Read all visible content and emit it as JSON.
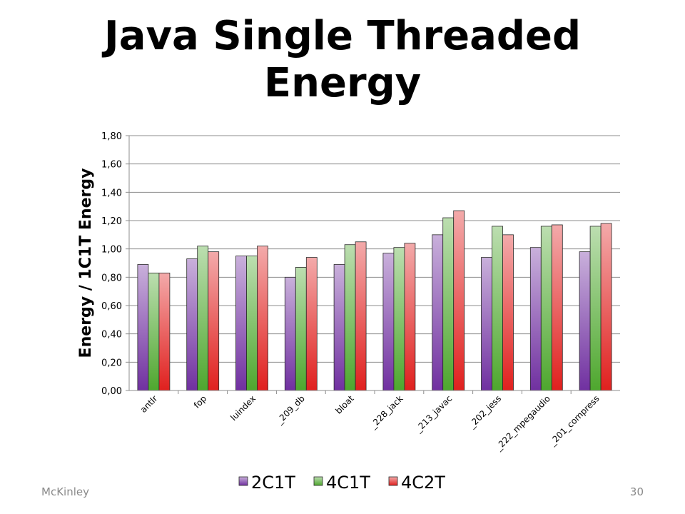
{
  "slide": {
    "title_line1": "Java Single Threaded",
    "title_line2": "Energy",
    "footer_author": "McKinley",
    "page_number": "30"
  },
  "chart_data": {
    "type": "bar",
    "title": "",
    "xlabel": "",
    "ylabel": "Energy / 1C1T Energy",
    "ylim": [
      0,
      1.8
    ],
    "yticks": [
      "0,00",
      "0,20",
      "0,40",
      "0,60",
      "0,80",
      "1,00",
      "1,20",
      "1,40",
      "1,60",
      "1,80"
    ],
    "grid": true,
    "legend_position": "bottom",
    "categories": [
      "antlr",
      "fop",
      "luindex",
      "_209_db",
      "bloat",
      "_228_jack",
      "_213_javac",
      "_202_jess",
      "_222_mpegaudio",
      "_201_compress"
    ],
    "series": [
      {
        "name": "2C1T",
        "color": "#7030a0",
        "values": [
          0.89,
          0.93,
          0.95,
          0.8,
          0.89,
          0.97,
          1.1,
          0.94,
          1.01,
          0.98
        ]
      },
      {
        "name": "4C1T",
        "color": "#4ea72e",
        "values": [
          0.83,
          1.02,
          0.95,
          0.87,
          1.03,
          1.01,
          1.22,
          1.16,
          1.16,
          1.16
        ]
      },
      {
        "name": "4C2T",
        "color": "#e0201e",
        "values": [
          0.83,
          0.98,
          1.02,
          0.94,
          1.05,
          1.04,
          1.27,
          1.1,
          1.17,
          1.18
        ]
      }
    ]
  }
}
